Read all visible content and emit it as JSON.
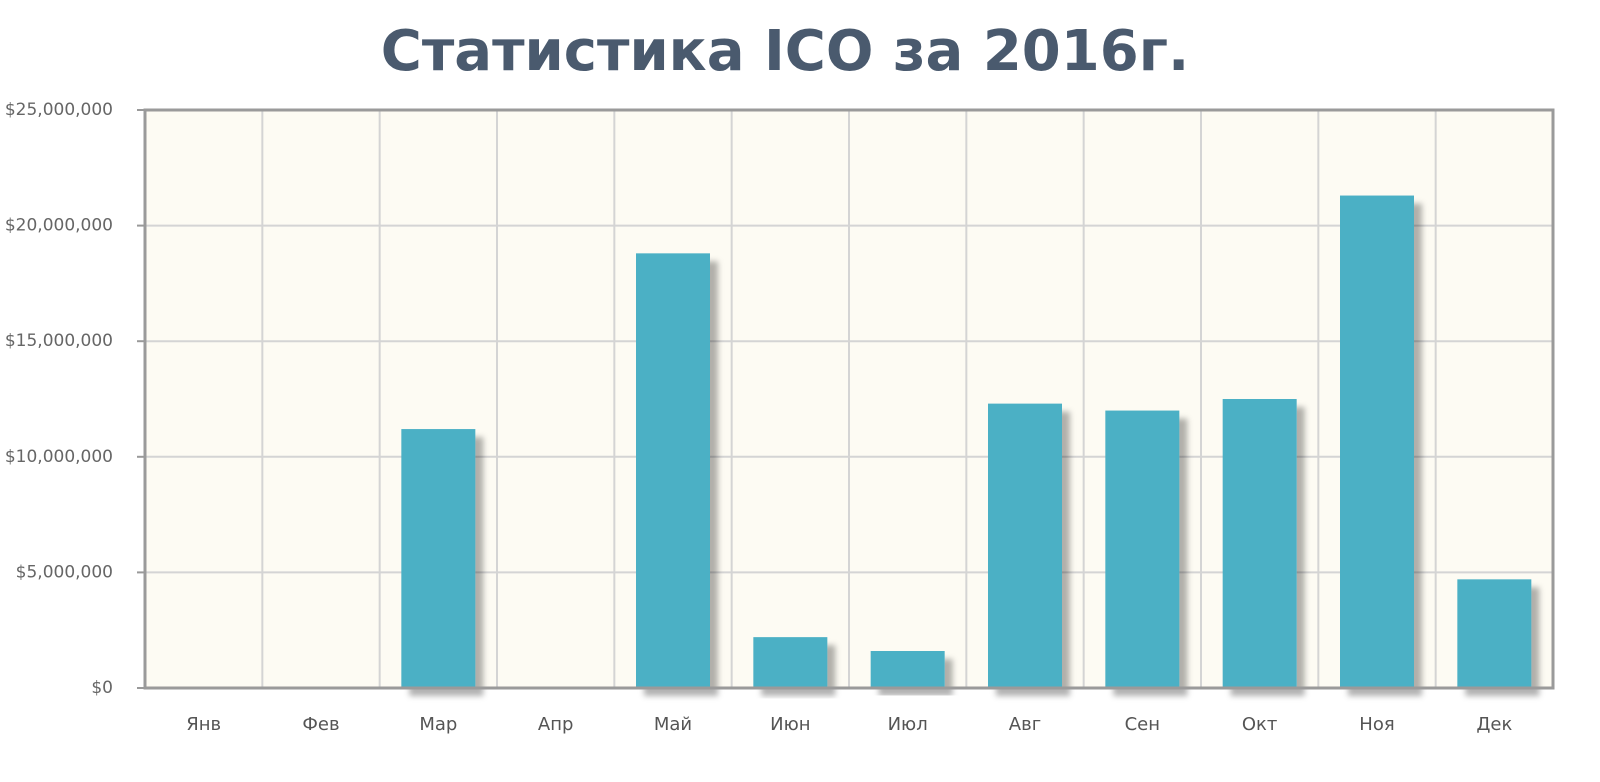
{
  "chart_data": {
    "type": "bar",
    "title": "Статистика ICO за 2016г.",
    "categories": [
      "Янв",
      "Фев",
      "Мар",
      "Апр",
      "Май",
      "Июн",
      "Июл",
      "Авг",
      "Сен",
      "Окт",
      "Ноя",
      "Дек"
    ],
    "values": [
      0,
      0,
      11200000,
      0,
      18800000,
      2200000,
      1600000,
      12300000,
      12000000,
      12500000,
      21300000,
      4700000
    ],
    "color": "#4bb0c5",
    "ylim": [
      0,
      25000000
    ],
    "yticks": [
      {
        "value": 0,
        "label": "$0"
      },
      {
        "value": 5000000,
        "label": "$5,000,000"
      },
      {
        "value": 10000000,
        "label": "$10,000,000"
      },
      {
        "value": 15000000,
        "label": "$15,000,000"
      },
      {
        "value": 20000000,
        "label": "$20,000,000"
      },
      {
        "value": 25000000,
        "label": "$25,000,000"
      }
    ],
    "grid": true
  }
}
